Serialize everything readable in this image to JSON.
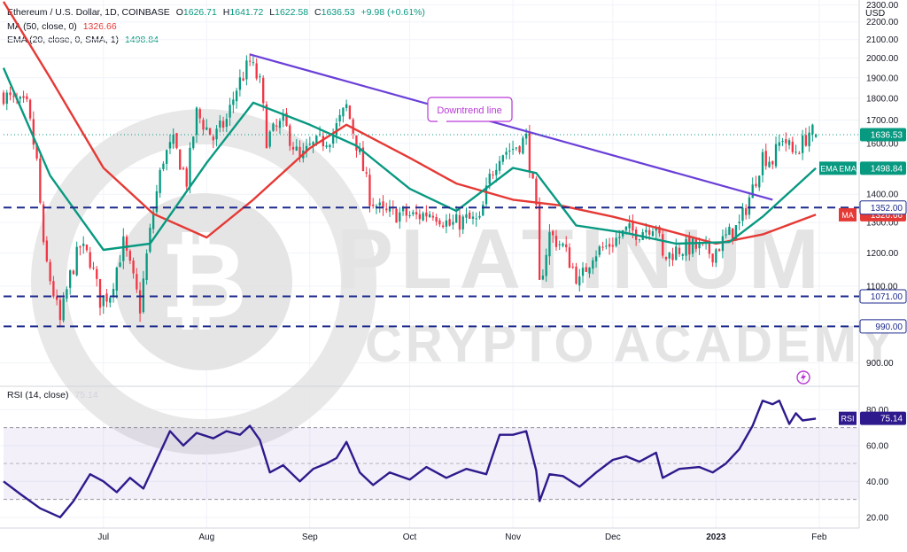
{
  "header": {
    "title": "Ethereum / U.S. Dollar, 1D, COINBASE",
    "open_label": "O",
    "open": "1626.71",
    "high_label": "H",
    "high": "1641.72",
    "low_label": "L",
    "low": "1622.58",
    "close_label": "C",
    "close": "1636.53",
    "change": "+9.98 (+0.61%)"
  },
  "indicators": {
    "ma_label": "MA (50, close, 0)",
    "ma_value": "1326.66",
    "ema_label": "EMA (20, close, 0, SMA, 1)",
    "ema_value": "1498.84",
    "rsi_label": "RSI (14, close)",
    "rsi_value": "75.14"
  },
  "axis": {
    "currency": "USD"
  },
  "colors": {
    "up": "#089981",
    "down": "#f23645",
    "ma": "#e53935",
    "ema": "#089981",
    "trendline": "#6a3fd8",
    "rsi": "#2e1a8c",
    "levels": "#1c2a8c",
    "annotation": "#b93bd6"
  },
  "watermark": {
    "line1": "PLATINUM",
    "line2": "CRYPTO ACADEMY",
    "logo": "bitcoin-coin-logo"
  },
  "chart_data": [
    {
      "type": "candlestick",
      "title": "Ethereum / U.S. Dollar, 1D, COINBASE",
      "ylabel": "USD",
      "ylim": [
        850,
        2330
      ],
      "y_scale": "log",
      "y_ticks": [
        900,
        1000,
        1100,
        1200,
        1300,
        1400,
        1500,
        1600,
        1700,
        1800,
        1900,
        2000,
        2100,
        2200,
        2300
      ],
      "x_ticks": [
        "Jul",
        "Aug",
        "Sep",
        "Oct",
        "Nov",
        "Dec",
        "2023",
        "Feb"
      ],
      "x_range": [
        "2022-06-01",
        "2023-02-13"
      ],
      "grid": true,
      "price_anchors": [
        [
          "2022-06-01",
          1820
        ],
        [
          "2022-06-04",
          1780
        ],
        [
          "2022-06-08",
          1760
        ],
        [
          "2022-06-11",
          1520
        ],
        [
          "2022-06-13",
          1210
        ],
        [
          "2022-06-15",
          1120
        ],
        [
          "2022-06-18",
          1000
        ],
        [
          "2022-06-21",
          1130
        ],
        [
          "2022-06-24",
          1220
        ],
        [
          "2022-06-27",
          1180
        ],
        [
          "2022-06-30",
          1060
        ],
        [
          "2022-07-03",
          1080
        ],
        [
          "2022-07-07",
          1230
        ],
        [
          "2022-07-12",
          1040
        ],
        [
          "2022-07-16",
          1340
        ],
        [
          "2022-07-19",
          1540
        ],
        [
          "2022-07-22",
          1600
        ],
        [
          "2022-07-26",
          1450
        ],
        [
          "2022-07-29",
          1730
        ],
        [
          "2022-08-03",
          1620
        ],
        [
          "2022-08-07",
          1700
        ],
        [
          "2022-08-10",
          1850
        ],
        [
          "2022-08-14",
          1980
        ],
        [
          "2022-08-17",
          1870
        ],
        [
          "2022-08-19",
          1620
        ],
        [
          "2022-08-24",
          1690
        ],
        [
          "2022-08-29",
          1530
        ],
        [
          "2022-09-01",
          1580
        ],
        [
          "2022-09-06",
          1620
        ],
        [
          "2022-09-08",
          1640
        ],
        [
          "2022-09-12",
          1760
        ],
        [
          "2022-09-15",
          1600
        ],
        [
          "2022-09-19",
          1390
        ],
        [
          "2022-09-23",
          1330
        ],
        [
          "2022-09-28",
          1330
        ],
        [
          "2022-10-03",
          1320
        ],
        [
          "2022-10-08",
          1340
        ],
        [
          "2022-10-13",
          1290
        ],
        [
          "2022-10-18",
          1310
        ],
        [
          "2022-10-22",
          1300
        ],
        [
          "2022-10-25",
          1460
        ],
        [
          "2022-10-28",
          1560
        ],
        [
          "2022-11-01",
          1580
        ],
        [
          "2022-11-05",
          1620
        ],
        [
          "2022-11-08",
          1330
        ],
        [
          "2022-11-09",
          1100
        ],
        [
          "2022-11-12",
          1260
        ],
        [
          "2022-11-16",
          1220
        ],
        [
          "2022-11-21",
          1110
        ],
        [
          "2022-11-25",
          1200
        ],
        [
          "2022-11-29",
          1220
        ],
        [
          "2022-12-05",
          1270
        ],
        [
          "2022-12-09",
          1270
        ],
        [
          "2022-12-14",
          1300
        ],
        [
          "2022-12-16",
          1180
        ],
        [
          "2022-12-20",
          1210
        ],
        [
          "2022-12-25",
          1220
        ],
        [
          "2022-12-31",
          1200
        ],
        [
          "2023-01-04",
          1250
        ],
        [
          "2023-01-08",
          1290
        ],
        [
          "2023-01-12",
          1420
        ],
        [
          "2023-01-15",
          1550
        ],
        [
          "2023-01-18",
          1530
        ],
        [
          "2023-01-21",
          1630
        ],
        [
          "2023-01-24",
          1560
        ],
        [
          "2023-01-27",
          1600
        ],
        [
          "2023-01-29",
          1650
        ],
        [
          "2023-01-31",
          1636
        ]
      ],
      "last": {
        "date": "2023-01-31",
        "open": 1626.71,
        "high": 1641.72,
        "low": 1622.58,
        "close": 1636.53
      },
      "series": [
        {
          "name": "MA (50, close, 0)",
          "last": 1326.66,
          "points": [
            [
              "2022-06-01",
              2320
            ],
            [
              "2022-06-15",
              1900
            ],
            [
              "2022-07-01",
              1500
            ],
            [
              "2022-07-16",
              1330
            ],
            [
              "2022-08-01",
              1250
            ],
            [
              "2022-08-15",
              1380
            ],
            [
              "2022-09-01",
              1580
            ],
            [
              "2022-09-12",
              1680
            ],
            [
              "2022-10-01",
              1540
            ],
            [
              "2022-10-15",
              1440
            ],
            [
              "2022-11-01",
              1380
            ],
            [
              "2022-11-15",
              1360
            ],
            [
              "2022-12-01",
              1320
            ],
            [
              "2022-12-15",
              1280
            ],
            [
              "2023-01-01",
              1230
            ],
            [
              "2023-01-15",
              1260
            ],
            [
              "2023-01-31",
              1327
            ]
          ]
        },
        {
          "name": "EMA (20, close, 0, SMA, 1)",
          "last": 1498.84,
          "points": [
            [
              "2022-06-01",
              1950
            ],
            [
              "2022-06-15",
              1470
            ],
            [
              "2022-07-01",
              1210
            ],
            [
              "2022-07-15",
              1230
            ],
            [
              "2022-08-01",
              1520
            ],
            [
              "2022-08-15",
              1780
            ],
            [
              "2022-09-01",
              1680
            ],
            [
              "2022-09-15",
              1590
            ],
            [
              "2022-10-01",
              1420
            ],
            [
              "2022-10-15",
              1340
            ],
            [
              "2022-11-01",
              1500
            ],
            [
              "2022-11-08",
              1480
            ],
            [
              "2022-11-20",
              1290
            ],
            [
              "2022-12-05",
              1265
            ],
            [
              "2022-12-20",
              1230
            ],
            [
              "2023-01-05",
              1235
            ],
            [
              "2023-01-15",
              1320
            ],
            [
              "2023-01-31",
              1499
            ]
          ]
        }
      ],
      "levels": [
        {
          "value": 1352.0,
          "label": "1352.00"
        },
        {
          "value": 1071.0,
          "label": "1071.00"
        },
        {
          "value": 990.0,
          "label": "990.00"
        }
      ],
      "last_price_label": "1636.53",
      "trendline": {
        "from": [
          "2022-08-14",
          2020
        ],
        "to": [
          "2023-01-18",
          1380
        ]
      },
      "annotations": [
        {
          "text": "Downtrend line"
        }
      ]
    },
    {
      "type": "line",
      "title": "RSI (14, close)",
      "ylim": [
        14,
        92
      ],
      "y_ticks": [
        20,
        40,
        60,
        80
      ],
      "bands": {
        "upper": 70,
        "lower": 30,
        "middle": 50
      },
      "last": 75.14,
      "series": [
        {
          "name": "RSI (14, close)",
          "points": [
            [
              "2022-06-01",
              40
            ],
            [
              "2022-06-06",
              33
            ],
            [
              "2022-06-12",
              25
            ],
            [
              "2022-06-18",
              20
            ],
            [
              "2022-06-22",
              29
            ],
            [
              "2022-06-27",
              44
            ],
            [
              "2022-07-01",
              40
            ],
            [
              "2022-07-05",
              34
            ],
            [
              "2022-07-09",
              42
            ],
            [
              "2022-07-13",
              36
            ],
            [
              "2022-07-17",
              52
            ],
            [
              "2022-07-21",
              68
            ],
            [
              "2022-07-25",
              60
            ],
            [
              "2022-07-29",
              67
            ],
            [
              "2022-08-03",
              64
            ],
            [
              "2022-08-07",
              68
            ],
            [
              "2022-08-11",
              66
            ],
            [
              "2022-08-14",
              71
            ],
            [
              "2022-08-17",
              63
            ],
            [
              "2022-08-20",
              45
            ],
            [
              "2022-08-24",
              49
            ],
            [
              "2022-08-29",
              40
            ],
            [
              "2022-09-02",
              47
            ],
            [
              "2022-09-06",
              50
            ],
            [
              "2022-09-09",
              53
            ],
            [
              "2022-09-12",
              62
            ],
            [
              "2022-09-16",
              45
            ],
            [
              "2022-09-20",
              38
            ],
            [
              "2022-09-25",
              45
            ],
            [
              "2022-10-01",
              41
            ],
            [
              "2022-10-06",
              48
            ],
            [
              "2022-10-12",
              42
            ],
            [
              "2022-10-18",
              47
            ],
            [
              "2022-10-24",
              44
            ],
            [
              "2022-10-28",
              66
            ],
            [
              "2022-11-01",
              66
            ],
            [
              "2022-11-05",
              68
            ],
            [
              "2022-11-08",
              46
            ],
            [
              "2022-11-09",
              29
            ],
            [
              "2022-11-12",
              44
            ],
            [
              "2022-11-16",
              43
            ],
            [
              "2022-11-21",
              37
            ],
            [
              "2022-11-26",
              45
            ],
            [
              "2022-12-01",
              52
            ],
            [
              "2022-12-05",
              54
            ],
            [
              "2022-12-09",
              51
            ],
            [
              "2022-12-14",
              56
            ],
            [
              "2022-12-16",
              42
            ],
            [
              "2022-12-21",
              47
            ],
            [
              "2022-12-27",
              48
            ],
            [
              "2022-12-31",
              45
            ],
            [
              "2023-01-04",
              50
            ],
            [
              "2023-01-08",
              58
            ],
            [
              "2023-01-12",
              71
            ],
            [
              "2023-01-15",
              85
            ],
            [
              "2023-01-18",
              83
            ],
            [
              "2023-01-20",
              85
            ],
            [
              "2023-01-23",
              72
            ],
            [
              "2023-01-25",
              78
            ],
            [
              "2023-01-27",
              74
            ],
            [
              "2023-01-31",
              75
            ]
          ]
        }
      ]
    }
  ]
}
